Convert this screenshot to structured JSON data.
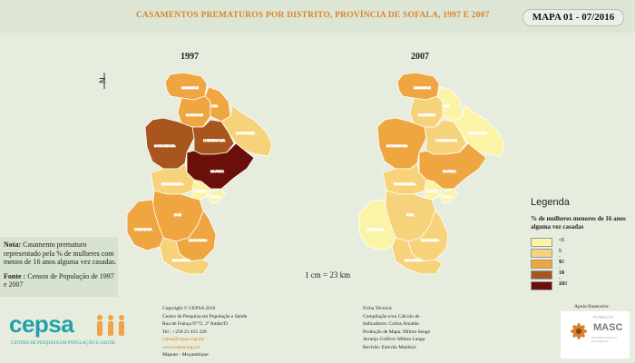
{
  "header": {
    "title": "CASAMENTOS PREMATUROS POR DISTRITO, PROVÍNCIA DE SOFALA, 1997 E 2007",
    "map_id": "MAPA 01 - 07/2016"
  },
  "maps": {
    "left_year": "1997",
    "right_year": "2007"
  },
  "district_labels": [
    "MARINGUE",
    "CHERINGOMA",
    "CAIA",
    "MARROMEU",
    "GORONGOSA",
    "MUANZA",
    "NHAMATANDA",
    "DONDO",
    "BEIRA",
    "BUZI",
    "CHIBABAVA",
    "MACHANGA",
    "MUANZA",
    "CHEMBA",
    "MACHANGA"
  ],
  "colors": {
    "lt5": "#fbf4a6",
    "c5_9": "#f6d27a",
    "c10_14": "#efa540",
    "c15_19": "#a8551e",
    "ge20": "#6b0f0a",
    "background": "#e6eddf",
    "title": "#d9822b"
  },
  "legend": {
    "title": "Legenda",
    "subtitle": "% de mulheres menores de 16 anos alguma vez casadas",
    "items": [
      {
        "label": "<5"
      },
      {
        "label": "5 - 9"
      },
      {
        "label": "10 - 14"
      },
      {
        "label": "15 - 19"
      },
      {
        "label": "≥20"
      }
    ]
  },
  "note": {
    "label": "Nota:",
    "text": "Casamento prematuro representado pela % de mulheres com menos de 16 anos alguma vez casadas.",
    "source_label": "Fonte :",
    "source_text": "Censos de População de 1997 e 2007"
  },
  "scale": "1 cm = 23 km",
  "footer": {
    "logo_text": "cepsa",
    "logo_sub": "CENTRO DE PESQUISA EM POPULAÇÃO E SAÚDE",
    "copyright": "Copyright © CEPSA 2016",
    "org": "Centro de Pesquisa em População e Saúde",
    "address": "Rua de França Nº72, 2º Andar/D",
    "tel": "Tel : +258 21 415 328",
    "email": "cepsa@cepsa.org.mz",
    "web": "www.cepsa.org.mz",
    "city": "Maputo - Moçambique",
    "ficha_title": "Ficha Técnica:",
    "ficha_l1": "Compilação e/ou Cálculo de",
    "ficha_l2": "Indicadores: Carlos Arnaldo",
    "ficha_l3": "Produção de Mapa: Milton Sengo",
    "ficha_l4": "Arranjo Gráfico: Milton Langa",
    "ficha_l5": "Revisão: Estevão Manhice",
    "apoio": "Apoio financeiro:",
    "funder_small": "FUNDAÇÃO",
    "funder_name": "MASC",
    "funder_tag": "Mecanismo de Apoio à Sociedade Civil"
  }
}
